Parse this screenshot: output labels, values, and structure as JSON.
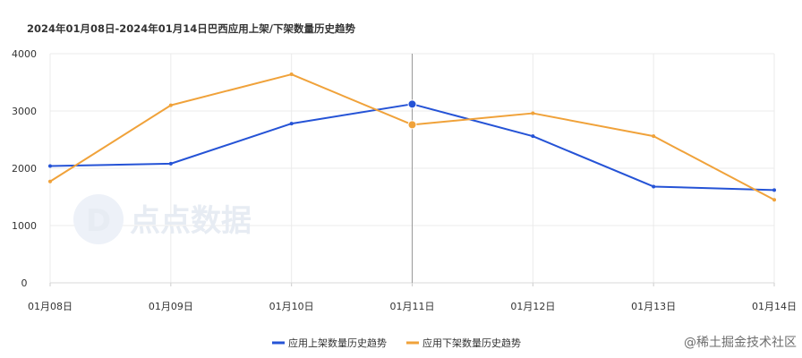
{
  "chart_data": {
    "type": "line",
    "title": "2024年01月08日-2024年01月14日巴西应用上架/下架数量历史趋势",
    "categories": [
      "01月08日",
      "01月09日",
      "01月10日",
      "01月11日",
      "01月12日",
      "01月13日",
      "01月14日"
    ],
    "ylim": [
      0,
      4000
    ],
    "yticks": [
      0,
      1000,
      2000,
      3000,
      4000
    ],
    "series": [
      {
        "name": "应用上架数量历史趋势",
        "color": "#2553d6",
        "values": [
          2040,
          2080,
          2780,
          3120,
          2560,
          1680,
          1620
        ]
      },
      {
        "name": "应用下架数量历史趋势",
        "color": "#f0a23a",
        "values": [
          1770,
          3100,
          3640,
          2760,
          2960,
          2560,
          1450
        ]
      }
    ],
    "highlight_index": 3,
    "legend_position": "bottom-center",
    "grid": true
  },
  "watermark": {
    "text": "点点数据",
    "logo_letter": "D"
  },
  "credit": "@稀土掘金技术社区"
}
